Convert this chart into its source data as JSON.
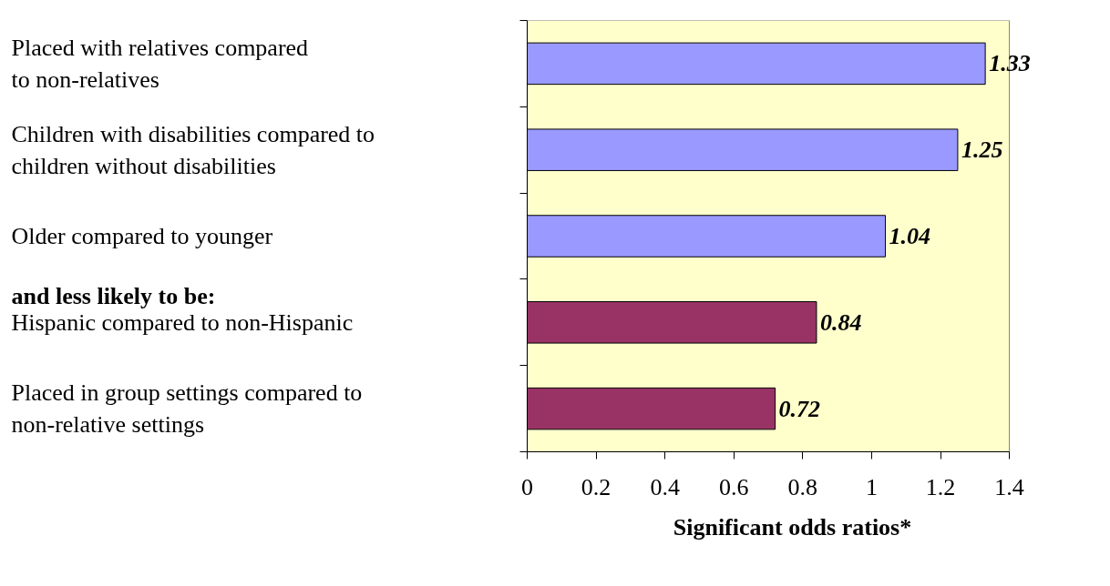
{
  "chart_data": {
    "type": "bar",
    "orientation": "horizontal",
    "categories": [
      "Placed with relatives compared\nto non-relatives",
      "Children with disabilities compared to\nchildren without disabilities",
      "Older compared to younger",
      "Hispanic compared to non-Hispanic",
      "Placed in group settings compared to\nnon-relative settings"
    ],
    "values": [
      1.33,
      1.25,
      1.04,
      0.84,
      0.72
    ],
    "colors": [
      "#9999ff",
      "#9999ff",
      "#9999ff",
      "#993366",
      "#993366"
    ],
    "xlabel": "Significant odds ratios*",
    "xlim": [
      0,
      1.4
    ],
    "xticks": [
      0,
      0.2,
      0.4,
      0.6,
      0.8,
      1,
      1.2,
      1.4
    ],
    "grid": "x",
    "data_labels": true,
    "legend": false,
    "annotations": [
      "and less likely to be:"
    ]
  }
}
